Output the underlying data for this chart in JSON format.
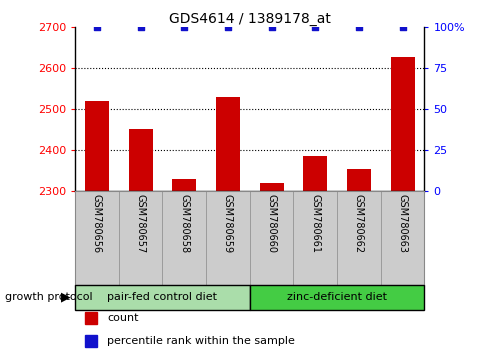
{
  "title": "GDS4614 / 1389178_at",
  "samples": [
    "GSM780656",
    "GSM780657",
    "GSM780658",
    "GSM780659",
    "GSM780660",
    "GSM780661",
    "GSM780662",
    "GSM780663"
  ],
  "counts": [
    2520,
    2450,
    2330,
    2530,
    2320,
    2385,
    2355,
    2625
  ],
  "percentiles": [
    100,
    100,
    100,
    100,
    100,
    100,
    100,
    100
  ],
  "ylim_left": [
    2300,
    2700
  ],
  "ylim_right": [
    0,
    100
  ],
  "yticks_left": [
    2300,
    2400,
    2500,
    2600,
    2700
  ],
  "yticks_right": [
    0,
    25,
    50,
    75,
    100
  ],
  "bar_color": "#cc0000",
  "dot_color": "#1111cc",
  "group1_label": "pair-fed control diet",
  "group2_label": "zinc-deficient diet",
  "group1_color": "#aaddaa",
  "group2_color": "#44cc44",
  "group_protocol_label": "growth protocol",
  "legend_count_label": "count",
  "legend_percentile_label": "percentile rank within the sample",
  "tick_area_color": "#cccccc",
  "tick_area_border": "#888888"
}
